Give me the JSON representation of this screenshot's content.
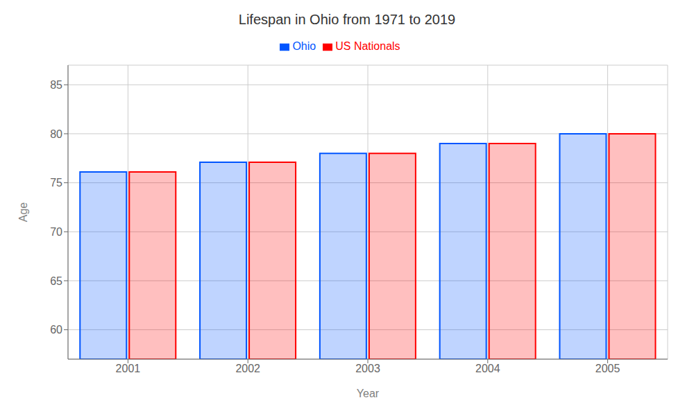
{
  "chart_data": {
    "type": "bar",
    "title": "Lifespan in Ohio from 1971 to 2019",
    "x_label": "Year",
    "y_label": "Age",
    "categories": [
      "2001",
      "2002",
      "2003",
      "2004",
      "2005"
    ],
    "series": [
      {
        "name": "Ohio",
        "color": "#0055ff",
        "values": [
          76.1,
          77.1,
          78.0,
          79.0,
          80.0
        ]
      },
      {
        "name": "US Nationals",
        "color": "#ff0000",
        "values": [
          76.1,
          77.1,
          78.0,
          79.0,
          80.0
        ]
      }
    ],
    "ylim": [
      57,
      87
    ],
    "yticks": [
      60,
      65,
      70,
      75,
      80,
      85
    ],
    "grid": true,
    "legend": "top"
  }
}
